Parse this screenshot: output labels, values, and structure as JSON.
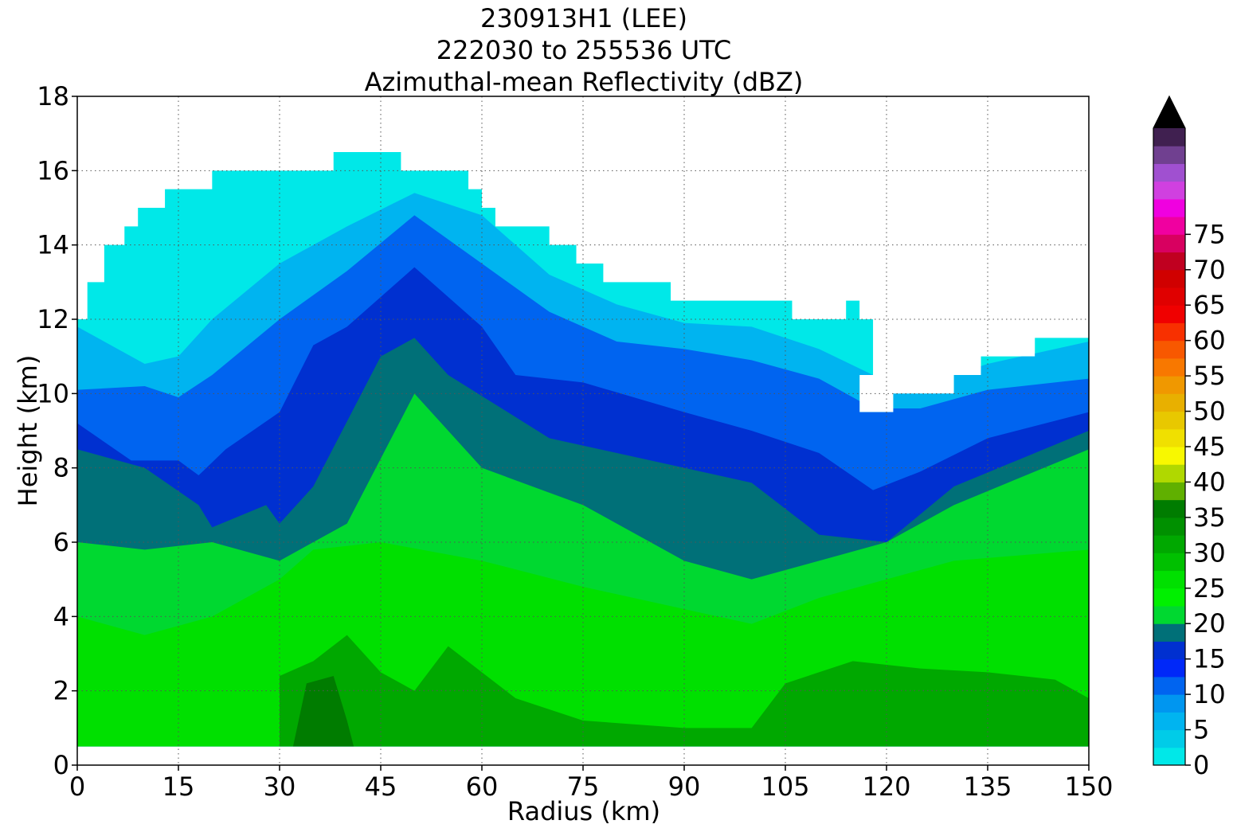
{
  "chart_data": {
    "type": "heatmap",
    "title_lines": [
      "230913H1 (LEE)",
      "222030 to 255536 UTC",
      "Azimuthal-mean Reflectivity (dBZ)"
    ],
    "xlabel": "Radius (km)",
    "ylabel": "Height (km)",
    "xlim": [
      0,
      150
    ],
    "ylim": [
      0,
      18
    ],
    "x_ticks": [
      0,
      15,
      30,
      45,
      60,
      75,
      90,
      105,
      120,
      135,
      150
    ],
    "y_ticks": [
      0,
      2,
      4,
      6,
      8,
      10,
      12,
      14,
      16,
      18
    ],
    "grid": true,
    "colorbar": {
      "levels": [
        0,
        2.5,
        5,
        7.5,
        10,
        12.5,
        15,
        17.5,
        20,
        22.5,
        25,
        27.5,
        30,
        32.5,
        35,
        37.5,
        40,
        42.5,
        45,
        47.5,
        50,
        52.5,
        55,
        57.5,
        60,
        62.5,
        65,
        67.5,
        70,
        72.5,
        75,
        77.5,
        80
      ],
      "tick_labels": [
        "0",
        "5",
        "10",
        "15",
        "20",
        "25",
        "30",
        "35",
        "40",
        "45",
        "50",
        "55",
        "60",
        "65",
        "70",
        "75"
      ],
      "tick_values": [
        0,
        5,
        10,
        15,
        20,
        25,
        30,
        35,
        40,
        45,
        50,
        55,
        60,
        65,
        70,
        75
      ],
      "colors": [
        "#00e8e8",
        "#00cce8",
        "#00b4f0",
        "#0096f0",
        "#0064f0",
        "#0028f8",
        "#0030d0",
        "#007078",
        "#00d830",
        "#00f000",
        "#00e000",
        "#00c000",
        "#00a800",
        "#009000",
        "#007c00",
        "#60b000",
        "#b0d800",
        "#f8f800",
        "#f0e000",
        "#e8c800",
        "#e8b000",
        "#f09800",
        "#f87800",
        "#f85800",
        "#f83000",
        "#f00000",
        "#e00000",
        "#d00000",
        "#c00020",
        "#d80060",
        "#f000a0",
        "#f000e0",
        "#d040e0",
        "#a050d0",
        "#704090",
        "#402050"
      ],
      "extend": "max"
    },
    "echo_top_km": [
      [
        0,
        12
      ],
      [
        1.5,
        12
      ],
      [
        1.5,
        13
      ],
      [
        4,
        13
      ],
      [
        4,
        14
      ],
      [
        7,
        14
      ],
      [
        7,
        14.5
      ],
      [
        9,
        14.5
      ],
      [
        9,
        15
      ],
      [
        13,
        15
      ],
      [
        13,
        15.5
      ],
      [
        20,
        15.5
      ],
      [
        20,
        16
      ],
      [
        38,
        16
      ],
      [
        38,
        16.5
      ],
      [
        48,
        16.5
      ],
      [
        48,
        16
      ],
      [
        58,
        16
      ],
      [
        58,
        15.5
      ],
      [
        60,
        15.5
      ],
      [
        60,
        15
      ],
      [
        62,
        15
      ],
      [
        62,
        14.5
      ],
      [
        70,
        14.5
      ],
      [
        70,
        14
      ],
      [
        74,
        14
      ],
      [
        74,
        13.5
      ],
      [
        78,
        13.5
      ],
      [
        78,
        13
      ],
      [
        88,
        13
      ],
      [
        88,
        12.5
      ],
      [
        106,
        12.5
      ],
      [
        106,
        12
      ],
      [
        114,
        12
      ],
      [
        114,
        12.5
      ],
      [
        116,
        12.5
      ],
      [
        116,
        12
      ],
      [
        118,
        12
      ],
      [
        118,
        10.5
      ],
      [
        116,
        10.5
      ],
      [
        116,
        9.5
      ],
      [
        121,
        9.5
      ],
      [
        121,
        10
      ],
      [
        130,
        10
      ],
      [
        130,
        10.5
      ],
      [
        134,
        10.5
      ],
      [
        134,
        11
      ],
      [
        142,
        11
      ],
      [
        142,
        11.5
      ],
      [
        150,
        11.5
      ]
    ],
    "base_km": 0.5,
    "approx_contours": [
      {
        "dbz": 5,
        "height_km": [
          [
            0,
            11.8
          ],
          [
            10,
            10.8
          ],
          [
            15,
            11
          ],
          [
            20,
            12
          ],
          [
            30,
            13.5
          ],
          [
            40,
            14.5
          ],
          [
            50,
            15.4
          ],
          [
            60,
            14.8
          ],
          [
            70,
            13.2
          ],
          [
            80,
            12.4
          ],
          [
            90,
            11.9
          ],
          [
            100,
            11.8
          ],
          [
            110,
            11.2
          ],
          [
            118,
            10.5
          ],
          [
            125,
            10.2
          ],
          [
            135,
            10.8
          ],
          [
            150,
            11.4
          ]
        ]
      },
      {
        "dbz": 10,
        "height_km": [
          [
            0,
            10.1
          ],
          [
            10,
            10.2
          ],
          [
            15,
            9.9
          ],
          [
            20,
            10.5
          ],
          [
            30,
            12
          ],
          [
            40,
            13.3
          ],
          [
            50,
            14.8
          ],
          [
            60,
            13.5
          ],
          [
            70,
            12.2
          ],
          [
            80,
            11.4
          ],
          [
            90,
            11.2
          ],
          [
            100,
            10.9
          ],
          [
            110,
            10.4
          ],
          [
            118,
            9.6
          ],
          [
            125,
            9.6
          ],
          [
            135,
            10.1
          ],
          [
            150,
            10.4
          ]
        ]
      },
      {
        "dbz": 15,
        "height_km": [
          [
            0,
            9.2
          ],
          [
            8,
            8.2
          ],
          [
            15,
            8.2
          ],
          [
            18,
            7.8
          ],
          [
            22,
            8.5
          ],
          [
            30,
            9.5
          ],
          [
            35,
            11.3
          ],
          [
            40,
            11.8
          ],
          [
            50,
            13.4
          ],
          [
            60,
            11.8
          ],
          [
            65,
            10.5
          ],
          [
            75,
            10.3
          ],
          [
            90,
            9.5
          ],
          [
            100,
            9
          ],
          [
            110,
            8.4
          ],
          [
            118,
            7.4
          ],
          [
            125,
            7.9
          ],
          [
            135,
            8.8
          ],
          [
            150,
            9.5
          ]
        ]
      },
      {
        "dbz": 17.5,
        "height_km": [
          [
            0,
            8.5
          ],
          [
            10,
            8
          ],
          [
            18,
            7
          ],
          [
            20,
            6.4
          ],
          [
            28,
            7
          ],
          [
            30,
            6.5
          ],
          [
            35,
            7.5
          ],
          [
            45,
            11
          ],
          [
            50,
            11.5
          ],
          [
            55,
            10.5
          ],
          [
            70,
            8.8
          ],
          [
            90,
            8
          ],
          [
            100,
            7.6
          ],
          [
            110,
            6.2
          ],
          [
            120,
            6
          ],
          [
            130,
            7.5
          ],
          [
            150,
            9
          ]
        ]
      },
      {
        "dbz": 20,
        "height_km": [
          [
            0,
            6
          ],
          [
            10,
            5.8
          ],
          [
            20,
            6
          ],
          [
            30,
            5.5
          ],
          [
            40,
            6.5
          ],
          [
            50,
            10
          ],
          [
            60,
            8
          ],
          [
            75,
            7
          ],
          [
            90,
            5.5
          ],
          [
            100,
            5
          ],
          [
            110,
            5.5
          ],
          [
            120,
            6
          ],
          [
            130,
            7
          ],
          [
            150,
            8.5
          ]
        ]
      },
      {
        "dbz": 25,
        "height_km": [
          [
            0,
            4
          ],
          [
            10,
            3.5
          ],
          [
            20,
            4
          ],
          [
            30,
            5
          ],
          [
            35,
            5.8
          ],
          [
            45,
            6
          ],
          [
            60,
            5.5
          ],
          [
            75,
            4.8
          ],
          [
            90,
            4.2
          ],
          [
            100,
            3.8
          ],
          [
            110,
            4.5
          ],
          [
            120,
            5
          ],
          [
            130,
            5.5
          ],
          [
            150,
            5.8
          ]
        ]
      },
      {
        "dbz": 30,
        "height_km": [
          [
            30,
            2.4
          ],
          [
            35,
            2.8
          ],
          [
            40,
            3.5
          ],
          [
            45,
            2.5
          ],
          [
            50,
            2
          ],
          [
            55,
            3.2
          ],
          [
            60,
            2.5
          ],
          [
            65,
            1.8
          ],
          [
            75,
            1.2
          ],
          [
            90,
            1
          ],
          [
            100,
            1
          ],
          [
            105,
            2.2
          ],
          [
            115,
            2.8
          ],
          [
            125,
            2.6
          ],
          [
            135,
            2.5
          ],
          [
            145,
            2.3
          ],
          [
            150,
            1.8
          ]
        ]
      },
      {
        "dbz": 35,
        "height_km": [
          [
            32,
            0.5
          ],
          [
            34,
            2.2
          ],
          [
            38,
            2.4
          ],
          [
            40,
            1.2
          ],
          [
            41,
            0.5
          ]
        ]
      }
    ]
  }
}
